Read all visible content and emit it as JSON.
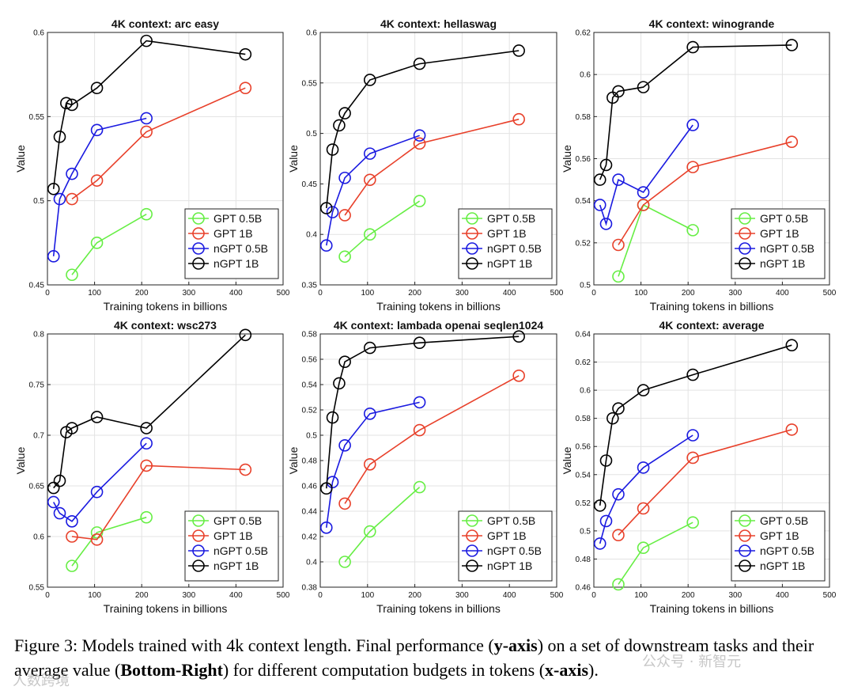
{
  "chart_data": [
    {
      "type": "line",
      "title": "4K context:  arc easy",
      "xlabel": "Training tokens in billions",
      "ylabel": "Value",
      "xlim": [
        0,
        500
      ],
      "ylim": [
        0.45,
        0.6
      ],
      "xticks": [
        0,
        100,
        200,
        300,
        400,
        500
      ],
      "yticks": [
        0.45,
        0.5,
        0.55,
        0.6
      ],
      "ytick_labels": [
        "0.45",
        "0.5",
        "0.55",
        "0.6"
      ],
      "grid": true,
      "legend_position": "bottom-right",
      "series": [
        {
          "name": "GPT 0.5B",
          "color": "#66ee44",
          "x": [
            52,
            105,
            210
          ],
          "y": [
            0.456,
            0.475,
            0.492
          ]
        },
        {
          "name": "GPT 1B",
          "color": "#e8402a",
          "x": [
            52,
            105,
            210,
            420
          ],
          "y": [
            0.501,
            0.512,
            0.541,
            0.567
          ]
        },
        {
          "name": "nGPT 0.5B",
          "color": "#1a1ae0",
          "x": [
            13,
            26,
            52,
            105,
            210
          ],
          "y": [
            0.467,
            0.501,
            0.516,
            0.542,
            0.549
          ]
        },
        {
          "name": "nGPT 1B",
          "color": "#000000",
          "x": [
            13,
            26,
            40,
            52,
            105,
            210,
            420
          ],
          "y": [
            0.507,
            0.538,
            0.558,
            0.557,
            0.567,
            0.595,
            0.587
          ]
        }
      ]
    },
    {
      "type": "line",
      "title": "4K context:  hellaswag",
      "xlabel": "Training tokens in billions",
      "ylabel": "Value",
      "xlim": [
        0,
        500
      ],
      "ylim": [
        0.35,
        0.6
      ],
      "xticks": [
        0,
        100,
        200,
        300,
        400,
        500
      ],
      "yticks": [
        0.35,
        0.4,
        0.45,
        0.5,
        0.55,
        0.6
      ],
      "ytick_labels": [
        "0.35",
        "0.4",
        "0.45",
        "0.5",
        "0.55",
        "0.6"
      ],
      "grid": true,
      "legend_position": "bottom-right",
      "series": [
        {
          "name": "GPT 0.5B",
          "color": "#66ee44",
          "x": [
            52,
            105,
            210
          ],
          "y": [
            0.378,
            0.4,
            0.433
          ]
        },
        {
          "name": "GPT 1B",
          "color": "#e8402a",
          "x": [
            52,
            105,
            210,
            420
          ],
          "y": [
            0.419,
            0.454,
            0.49,
            0.514
          ]
        },
        {
          "name": "nGPT 0.5B",
          "color": "#1a1ae0",
          "x": [
            13,
            26,
            52,
            105,
            210
          ],
          "y": [
            0.389,
            0.422,
            0.456,
            0.48,
            0.498
          ]
        },
        {
          "name": "nGPT 1B",
          "color": "#000000",
          "x": [
            13,
            26,
            40,
            52,
            105,
            210,
            420
          ],
          "y": [
            0.426,
            0.484,
            0.508,
            0.52,
            0.553,
            0.569,
            0.582
          ]
        }
      ]
    },
    {
      "type": "line",
      "title": "4K context:  winogrande",
      "xlabel": "Training tokens in billions",
      "ylabel": "Value",
      "xlim": [
        0,
        500
      ],
      "ylim": [
        0.5,
        0.62
      ],
      "xticks": [
        0,
        100,
        200,
        300,
        400,
        500
      ],
      "yticks": [
        0.5,
        0.52,
        0.54,
        0.56,
        0.58,
        0.6,
        0.62
      ],
      "ytick_labels": [
        "0.5",
        "0.52",
        "0.54",
        "0.56",
        "0.58",
        "0.6",
        "0.62"
      ],
      "grid": true,
      "legend_position": "bottom-right",
      "series": [
        {
          "name": "GPT 0.5B",
          "color": "#66ee44",
          "x": [
            52,
            105,
            210
          ],
          "y": [
            0.504,
            0.538,
            0.526
          ]
        },
        {
          "name": "GPT 1B",
          "color": "#e8402a",
          "x": [
            52,
            105,
            210,
            420
          ],
          "y": [
            0.519,
            0.538,
            0.556,
            0.568
          ]
        },
        {
          "name": "nGPT 0.5B",
          "color": "#1a1ae0",
          "x": [
            13,
            26,
            52,
            105,
            210
          ],
          "y": [
            0.538,
            0.529,
            0.55,
            0.544,
            0.576
          ]
        },
        {
          "name": "nGPT 1B",
          "color": "#000000",
          "x": [
            13,
            26,
            40,
            52,
            105,
            210,
            420
          ],
          "y": [
            0.55,
            0.557,
            0.589,
            0.592,
            0.594,
            0.613,
            0.614
          ]
        }
      ]
    },
    {
      "type": "line",
      "title": "4K context:  wsc273",
      "xlabel": "Training tokens in billions",
      "ylabel": "Value",
      "xlim": [
        0,
        500
      ],
      "ylim": [
        0.55,
        0.8
      ],
      "xticks": [
        0,
        100,
        200,
        300,
        400,
        500
      ],
      "yticks": [
        0.55,
        0.6,
        0.65,
        0.7,
        0.75,
        0.8
      ],
      "ytick_labels": [
        "0.55",
        "0.6",
        "0.65",
        "0.7",
        "0.75",
        "0.8"
      ],
      "grid": true,
      "legend_position": "bottom-right",
      "series": [
        {
          "name": "GPT 0.5B",
          "color": "#66ee44",
          "x": [
            52,
            105,
            210
          ],
          "y": [
            0.571,
            0.604,
            0.619
          ]
        },
        {
          "name": "GPT 1B",
          "color": "#e8402a",
          "x": [
            52,
            105,
            210,
            420
          ],
          "y": [
            0.6,
            0.597,
            0.67,
            0.666
          ]
        },
        {
          "name": "nGPT 0.5B",
          "color": "#1a1ae0",
          "x": [
            13,
            26,
            52,
            105,
            210
          ],
          "y": [
            0.634,
            0.623,
            0.615,
            0.644,
            0.692
          ]
        },
        {
          "name": "nGPT 1B",
          "color": "#000000",
          "x": [
            13,
            26,
            40,
            52,
            105,
            210,
            420
          ],
          "y": [
            0.648,
            0.655,
            0.703,
            0.707,
            0.718,
            0.707,
            0.799
          ]
        }
      ]
    },
    {
      "type": "line",
      "title": "4K context:  lambada openai seqlen1024",
      "xlabel": "Training tokens in billions",
      "ylabel": "Value",
      "xlim": [
        0,
        500
      ],
      "ylim": [
        0.38,
        0.58
      ],
      "xticks": [
        0,
        100,
        200,
        300,
        400,
        500
      ],
      "yticks": [
        0.38,
        0.4,
        0.42,
        0.44,
        0.46,
        0.48,
        0.5,
        0.52,
        0.54,
        0.56,
        0.58
      ],
      "ytick_labels": [
        "0.38",
        "0.4",
        "0.42",
        "0.44",
        "0.46",
        "0.48",
        "0.5",
        "0.52",
        "0.54",
        "0.56",
        "0.58"
      ],
      "grid": true,
      "legend_position": "bottom-right",
      "series": [
        {
          "name": "GPT 0.5B",
          "color": "#66ee44",
          "x": [
            52,
            105,
            210
          ],
          "y": [
            0.4,
            0.424,
            0.459
          ]
        },
        {
          "name": "GPT 1B",
          "color": "#e8402a",
          "x": [
            52,
            105,
            210,
            420
          ],
          "y": [
            0.446,
            0.477,
            0.504,
            0.547
          ]
        },
        {
          "name": "nGPT 0.5B",
          "color": "#1a1ae0",
          "x": [
            13,
            26,
            52,
            105,
            210
          ],
          "y": [
            0.427,
            0.463,
            0.492,
            0.517,
            0.526
          ]
        },
        {
          "name": "nGPT 1B",
          "color": "#000000",
          "x": [
            13,
            26,
            40,
            52,
            105,
            210,
            420
          ],
          "y": [
            0.458,
            0.514,
            0.541,
            0.558,
            0.569,
            0.573,
            0.578
          ]
        }
      ]
    },
    {
      "type": "line",
      "title": "4K context:  average",
      "xlabel": "Training tokens in billions",
      "ylabel": "Value",
      "xlim": [
        0,
        500
      ],
      "ylim": [
        0.46,
        0.64
      ],
      "xticks": [
        0,
        100,
        200,
        300,
        400,
        500
      ],
      "yticks": [
        0.46,
        0.48,
        0.5,
        0.52,
        0.54,
        0.56,
        0.58,
        0.6,
        0.62,
        0.64
      ],
      "ytick_labels": [
        "0.46",
        "0.48",
        "0.5",
        "0.52",
        "0.54",
        "0.56",
        "0.58",
        "0.6",
        "0.62",
        "0.64"
      ],
      "grid": true,
      "legend_position": "bottom-right",
      "series": [
        {
          "name": "GPT 0.5B",
          "color": "#66ee44",
          "x": [
            52,
            105,
            210
          ],
          "y": [
            0.462,
            0.488,
            0.506
          ]
        },
        {
          "name": "GPT 1B",
          "color": "#e8402a",
          "x": [
            52,
            105,
            210,
            420
          ],
          "y": [
            0.497,
            0.516,
            0.552,
            0.572
          ]
        },
        {
          "name": "nGPT 0.5B",
          "color": "#1a1ae0",
          "x": [
            13,
            26,
            52,
            105,
            210
          ],
          "y": [
            0.491,
            0.507,
            0.526,
            0.545,
            0.568
          ]
        },
        {
          "name": "nGPT 1B",
          "color": "#000000",
          "x": [
            13,
            26,
            40,
            52,
            105,
            210,
            420
          ],
          "y": [
            0.518,
            0.55,
            0.58,
            0.587,
            0.6,
            0.611,
            0.632
          ]
        }
      ]
    }
  ],
  "caption": {
    "prefix": "Figure 3:  Models trained with 4k context length. Final performance (",
    "bold1": "y-axis",
    "mid1": ") on a set of downstream tasks and their average value (",
    "bold2": "Bottom-Right",
    "mid2": ") for different computation budgets in tokens (",
    "bold3": "x-axis",
    "suffix": ")."
  },
  "watermark": {
    "left": "人数跨境",
    "right": "公众号 · 新智元"
  }
}
